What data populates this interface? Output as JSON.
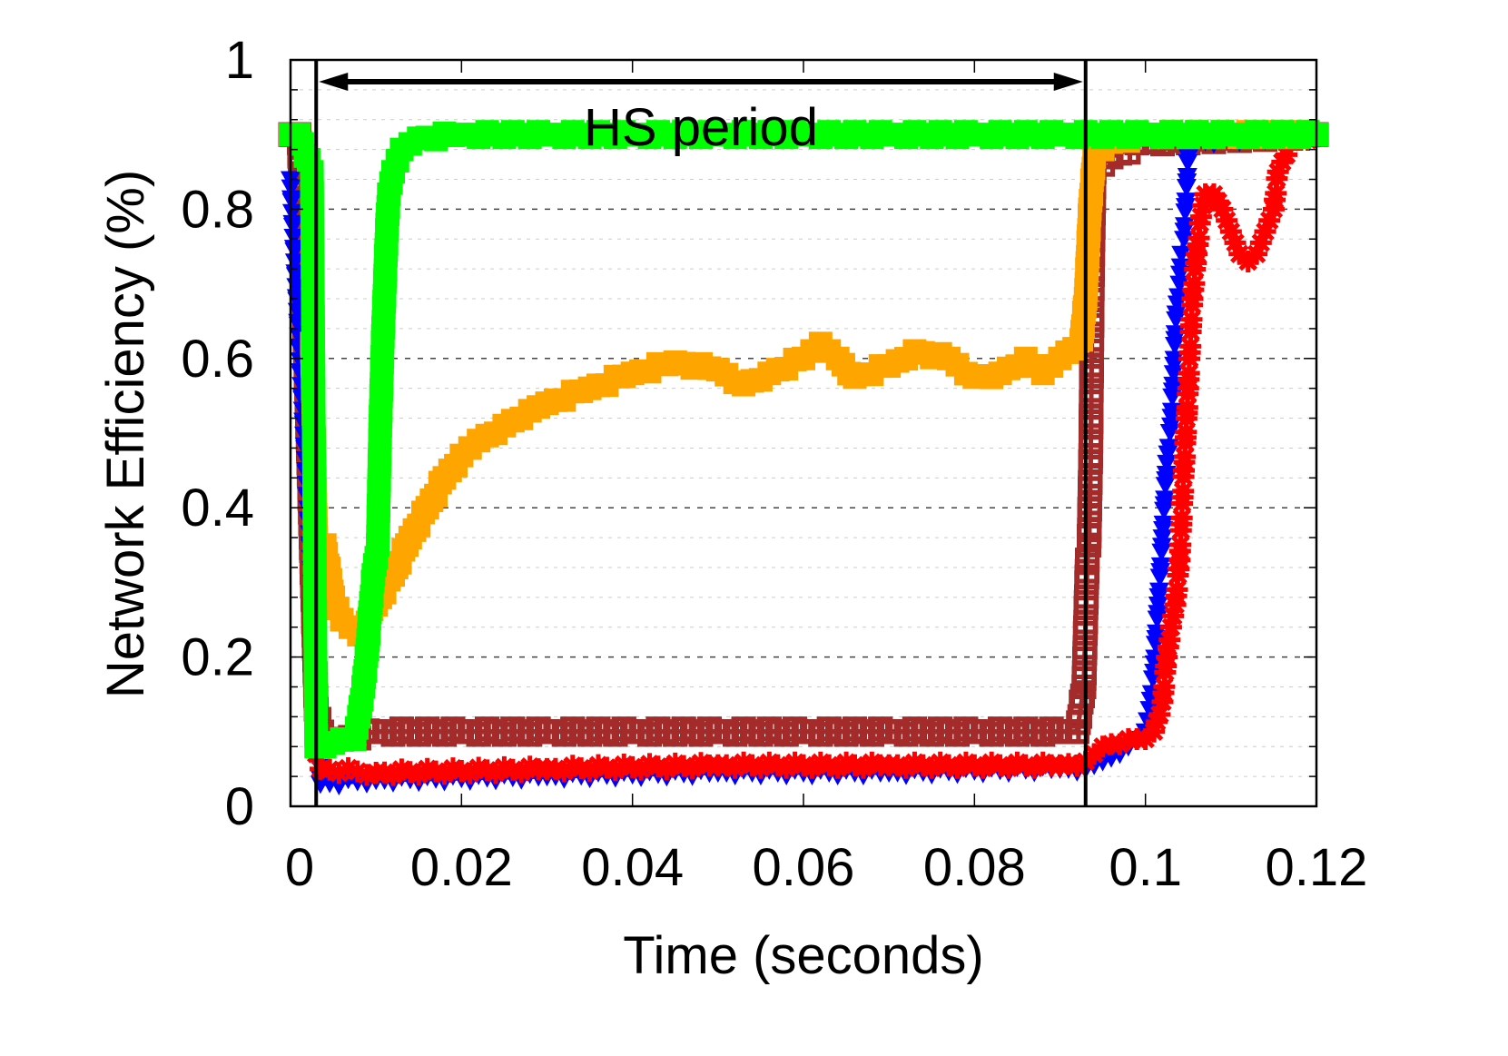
{
  "chart_data": {
    "type": "line",
    "title": "",
    "xlabel": "Time (seconds)",
    "ylabel": "Network Efficiency (%)",
    "xlim": [
      0,
      0.12
    ],
    "ylim": [
      0,
      1
    ],
    "xticks": [
      "0",
      "0.02",
      "0.04",
      "0.06",
      "0.08",
      "0.1",
      "0.12"
    ],
    "xtick_values": [
      0,
      0.02,
      0.04,
      0.06,
      0.08,
      0.1,
      0.12
    ],
    "yticks": [
      "0",
      "0.2",
      "0.4",
      "0.6",
      "0.8",
      "1"
    ],
    "ytick_values": [
      0,
      0.2,
      0.4,
      0.6,
      0.8,
      1
    ],
    "grid": {
      "major_y": true,
      "minor_y": true,
      "style": "dashed"
    },
    "legend": "none",
    "annotations": {
      "period_label": "HS period",
      "period_start": 0.003,
      "period_end": 0.093
    },
    "series": [
      {
        "color": "#000000",
        "marker": "open-square",
        "x": [
          0,
          0.001,
          0.003,
          0.004,
          0.006,
          0.01,
          0.02,
          0.03,
          0.04,
          0.05,
          0.06,
          0.07,
          0.08,
          0.09,
          0.092,
          0.0928,
          0.0932,
          0.0934,
          0.0936,
          0.0938,
          0.094,
          0.096,
          0.1,
          0.12
        ],
        "y": [
          0.9,
          0.9,
          0.13,
          0.09,
          0.09,
          0.1,
          0.1,
          0.1,
          0.1,
          0.1,
          0.1,
          0.1,
          0.1,
          0.1,
          0.1,
          0.16,
          0.33,
          0.35,
          0.47,
          0.72,
          0.85,
          0.87,
          0.89,
          0.9
        ]
      },
      {
        "color": "#a52a2a",
        "marker": "open-square",
        "x": [
          0,
          0.001,
          0.003,
          0.004,
          0.006,
          0.01,
          0.02,
          0.03,
          0.04,
          0.05,
          0.06,
          0.07,
          0.08,
          0.09,
          0.092,
          0.0928,
          0.0932,
          0.0934,
          0.0936,
          0.0938,
          0.094,
          0.096,
          0.1,
          0.12
        ],
        "y": [
          0.9,
          0.9,
          0.13,
          0.09,
          0.09,
          0.1,
          0.1,
          0.1,
          0.1,
          0.1,
          0.1,
          0.1,
          0.1,
          0.1,
          0.1,
          0.16,
          0.33,
          0.35,
          0.47,
          0.72,
          0.85,
          0.87,
          0.89,
          0.9
        ]
      },
      {
        "color": "#0000ff",
        "marker": "triangle-down",
        "x": [
          0,
          0.003,
          0.0035,
          0.01,
          0.03,
          0.05,
          0.07,
          0.09,
          0.093,
          0.095,
          0.097,
          0.099,
          0.1,
          0.1005,
          0.101,
          0.1015,
          0.102,
          0.1025,
          0.103,
          0.1033,
          0.1036,
          0.104,
          0.1042,
          0.1045,
          0.105,
          0.106,
          0.12
        ],
        "y": [
          0.84,
          0.2,
          0.03,
          0.035,
          0.04,
          0.045,
          0.045,
          0.05,
          0.05,
          0.06,
          0.07,
          0.09,
          0.1,
          0.13,
          0.18,
          0.27,
          0.36,
          0.46,
          0.51,
          0.58,
          0.66,
          0.7,
          0.74,
          0.76,
          0.87,
          0.89,
          0.9
        ]
      },
      {
        "color": "#ff0000",
        "marker": "star",
        "x": [
          0.0025,
          0.0028,
          0.003,
          0.0035,
          0.01,
          0.03,
          0.05,
          0.07,
          0.09,
          0.093,
          0.095,
          0.098,
          0.1,
          0.101,
          0.102,
          0.1025,
          0.103,
          0.1035,
          0.104,
          0.1045,
          0.105,
          0.1055,
          0.106,
          0.1065,
          0.107,
          0.108,
          0.109,
          0.11,
          0.111,
          0.112,
          0.113,
          0.114,
          0.115,
          0.1155,
          0.117,
          0.12
        ],
        "y": [
          0.6,
          0.33,
          0.07,
          0.05,
          0.045,
          0.05,
          0.055,
          0.055,
          0.055,
          0.06,
          0.08,
          0.09,
          0.09,
          0.1,
          0.14,
          0.2,
          0.24,
          0.27,
          0.33,
          0.45,
          0.56,
          0.68,
          0.74,
          0.79,
          0.82,
          0.82,
          0.8,
          0.77,
          0.74,
          0.73,
          0.74,
          0.77,
          0.8,
          0.85,
          0.89,
          0.9
        ]
      },
      {
        "color": "#ffa500",
        "marker": "filled-square",
        "x": [
          0.0025,
          0.003,
          0.004,
          0.005,
          0.006,
          0.008,
          0.01,
          0.012,
          0.014,
          0.016,
          0.018,
          0.02,
          0.022,
          0.025,
          0.028,
          0.03,
          0.035,
          0.04,
          0.045,
          0.05,
          0.053,
          0.056,
          0.06,
          0.062,
          0.064,
          0.066,
          0.07,
          0.073,
          0.077,
          0.08,
          0.083,
          0.086,
          0.088,
          0.09,
          0.0925,
          0.093,
          0.0935,
          0.094,
          0.096,
          0.1,
          0.12
        ],
        "y": [
          0.62,
          0.36,
          0.35,
          0.28,
          0.25,
          0.23,
          0.27,
          0.31,
          0.36,
          0.4,
          0.44,
          0.47,
          0.49,
          0.51,
          0.53,
          0.54,
          0.56,
          0.58,
          0.595,
          0.585,
          0.565,
          0.58,
          0.6,
          0.62,
          0.6,
          0.575,
          0.59,
          0.61,
          0.6,
          0.575,
          0.58,
          0.6,
          0.58,
          0.6,
          0.625,
          0.68,
          0.8,
          0.87,
          0.89,
          0.9,
          0.9
        ]
      },
      {
        "color": "#00ff00",
        "marker": "filled-square",
        "x": [
          0,
          0.001,
          0.0025,
          0.003,
          0.004,
          0.006,
          0.0075,
          0.008,
          0.0085,
          0.009,
          0.0093,
          0.0097,
          0.0102,
          0.0105,
          0.0108,
          0.0113,
          0.0115,
          0.012,
          0.013,
          0.015,
          0.02,
          0.03,
          0.04,
          0.05,
          0.06,
          0.07,
          0.08,
          0.09,
          0.1,
          0.11,
          0.12
        ],
        "y": [
          0.9,
          0.9,
          0.85,
          0.08,
          0.08,
          0.09,
          0.09,
          0.12,
          0.16,
          0.21,
          0.26,
          0.31,
          0.35,
          0.51,
          0.63,
          0.78,
          0.82,
          0.85,
          0.88,
          0.895,
          0.9,
          0.9,
          0.9,
          0.9,
          0.9,
          0.9,
          0.9,
          0.9,
          0.9,
          0.9,
          0.9
        ]
      }
    ]
  }
}
